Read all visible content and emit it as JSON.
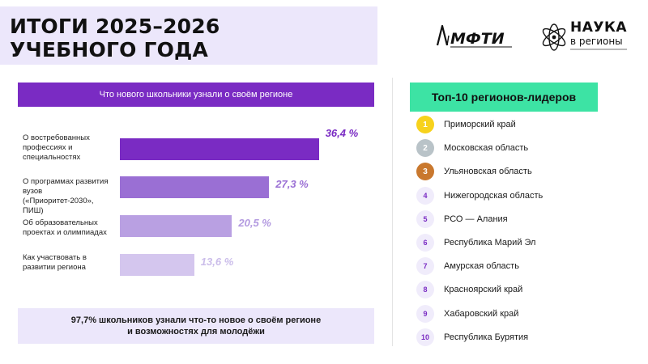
{
  "title": {
    "line1": "ИТОГИ 2025–2026",
    "line2": "УЧЕБНОГО ГОДА"
  },
  "logos": {
    "mfti_text": "МФТИ",
    "nauka_word1": "НАУКА",
    "nauka_word2": "в регионы"
  },
  "chart_data": {
    "type": "bar",
    "orientation": "horizontal",
    "title": "Что нового школьники узнали о своём регионе",
    "categories": [
      "О востребованных профессиях и специальностях",
      "О программах развития вузов («Приоритет-2030», ПИШ)",
      "Об образовательных проектах и олимпиадах",
      "Как участвовать в развитии региона"
    ],
    "values": [
      36.4,
      27.3,
      20.5,
      13.6
    ],
    "value_labels": [
      "36,4 %",
      "27,3 %",
      "20,5 %",
      "13,6 %"
    ],
    "colors": [
      "#7a2bc3",
      "#9a6fd4",
      "#b9a0e2",
      "#d4c6ee"
    ],
    "label_colors": [
      "#7a2bc3",
      "#9a6fd4",
      "#b39ae0",
      "#cbbdea"
    ],
    "xlim": [
      0,
      40
    ],
    "grid": false
  },
  "summary": {
    "line1": "97,7% школьников узнали что-то новое о своём регионе",
    "line2": "и возможностях для молодёжи"
  },
  "top_regions": {
    "title": "Топ-10 регионов-лидеров",
    "items": [
      {
        "rank": "1",
        "name": "Приморский край",
        "badge_color": "#f7d21c",
        "text_color": "#ffffff"
      },
      {
        "rank": "2",
        "name": "Московская область",
        "badge_color": "#b9c3c8",
        "text_color": "#ffffff"
      },
      {
        "rank": "3",
        "name": "Ульяновская область",
        "badge_color": "#c9782e",
        "text_color": "#ffffff"
      },
      {
        "rank": "4",
        "name": "Нижегородская область"
      },
      {
        "rank": "5",
        "name": "РСО — Алания"
      },
      {
        "rank": "6",
        "name": "Республика Марий Эл"
      },
      {
        "rank": "7",
        "name": "Амурская область"
      },
      {
        "rank": "8",
        "name": "Красноярский край"
      },
      {
        "rank": "9",
        "name": "Хабаровский край"
      },
      {
        "rank": "10",
        "name": "Республика Бурятия"
      }
    ]
  }
}
